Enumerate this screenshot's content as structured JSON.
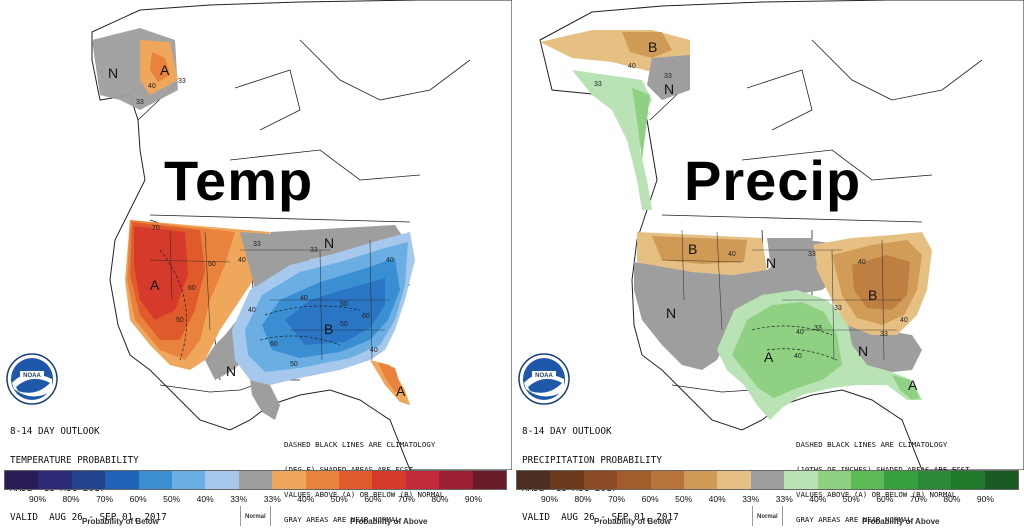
{
  "temp": {
    "title": "Temp",
    "info_lines": [
      "8-14 DAY OUTLOOK",
      "TEMPERATURE PROBABILITY",
      "MADE  18 AUG 2017",
      "VALID  AUG 26 - SEP 01, 2017"
    ],
    "note_lines": [
      "DASHED BLACK LINES ARE CLIMATOLOGY",
      "(DEG F) SHADED AREAS ARE FCST",
      "VALUES ABOVE (A) OR BELOW (B) NORMAL",
      "GRAY AREAS ARE NEAR-NORMAL"
    ],
    "map_labels": {
      "n_alaska": "N",
      "a_alaska": "A",
      "v40_alaska": "40",
      "v33_alaska": "33",
      "v33_alaska2": "33",
      "a_west": "A",
      "v50_w": "50",
      "v60_w": "60",
      "v70_w": "70",
      "v40_w": "40",
      "v33_w": "33",
      "v50_w2": "50",
      "n_central": "N",
      "n_south": "N",
      "b_east": "B",
      "v40_e": "40",
      "v50_e": "50",
      "v60_e": "60",
      "v50_e2": "50",
      "v40_e2": "40",
      "v33_e": "33",
      "v40_e3": "40",
      "v60_e2": "60",
      "v50_e3": "50",
      "v40_e4": "40",
      "a_fl": "A"
    },
    "legend": {
      "ticks": [
        "90%",
        "80%",
        "70%",
        "60%",
        "50%",
        "40%",
        "33%",
        "33%",
        "40%",
        "50%",
        "60%",
        "70%",
        "80%",
        "90%"
      ],
      "colors": [
        "#2a1a55",
        "#2d2a78",
        "#23438f",
        "#1f63b8",
        "#3a8fd3",
        "#6aaee4",
        "#a5c8ec",
        "#9e9e9e",
        "#efa75c",
        "#e8823c",
        "#df5b2b",
        "#d53a2a",
        "#c22a3a",
        "#9b2033",
        "#6a1a27"
      ],
      "below_label": "Probability of Below",
      "normal_label": "Normal",
      "above_label": "Probability of Above"
    }
  },
  "precip": {
    "title": "Precip",
    "info_lines": [
      "8-14 DAY OUTLOOK",
      "PRECIPITATION PROBABILITY",
      "MADE  18 AUG 2017",
      "VALID  AUG 26 - SEP 01, 2017"
    ],
    "note_lines": [
      "DASHED BLACK LINES ARE CLIMATOLOGY",
      "(10THS OF INCHES) SHADED AREAS ARE FCST",
      "VALUES ABOVE (A) OR BELOW (B) NORMAL",
      "GRAY AREAS ARE NEAR-NORMAL"
    ],
    "map_labels": {
      "b_alaska": "B",
      "v40_ak": "40",
      "v33_ak": "33",
      "v33_ak2": "33",
      "n_ak": "N",
      "b_nw": "B",
      "v40_nw": "40",
      "n_north": "N",
      "v33_n": "33",
      "n_west": "N",
      "v40_c": "40",
      "v33_c": "33",
      "a_south": "A",
      "v40_s": "40",
      "b_ohio": "B",
      "v40_oh": "40",
      "v40_oh2": "40",
      "v33_oh": "33",
      "n_se": "N",
      "a_fl": "A",
      "v33_se": "33"
    },
    "legend": {
      "ticks": [
        "90%",
        "80%",
        "70%",
        "60%",
        "50%",
        "40%",
        "33%",
        "33%",
        "40%",
        "50%",
        "60%",
        "70%",
        "80%",
        "90%"
      ],
      "colors": [
        "#4b2e20",
        "#6b3a1c",
        "#8a4a23",
        "#a25d2b",
        "#b8743a",
        "#cf9a55",
        "#e6c083",
        "#9e9e9e",
        "#b9e3b4",
        "#8fd083",
        "#5dbb57",
        "#36a13d",
        "#2a8a3a",
        "#1f7a2c",
        "#1c5a25"
      ],
      "below_label": "Probability of Below",
      "normal_label": "Normal",
      "above_label": "Probability of Above"
    }
  }
}
